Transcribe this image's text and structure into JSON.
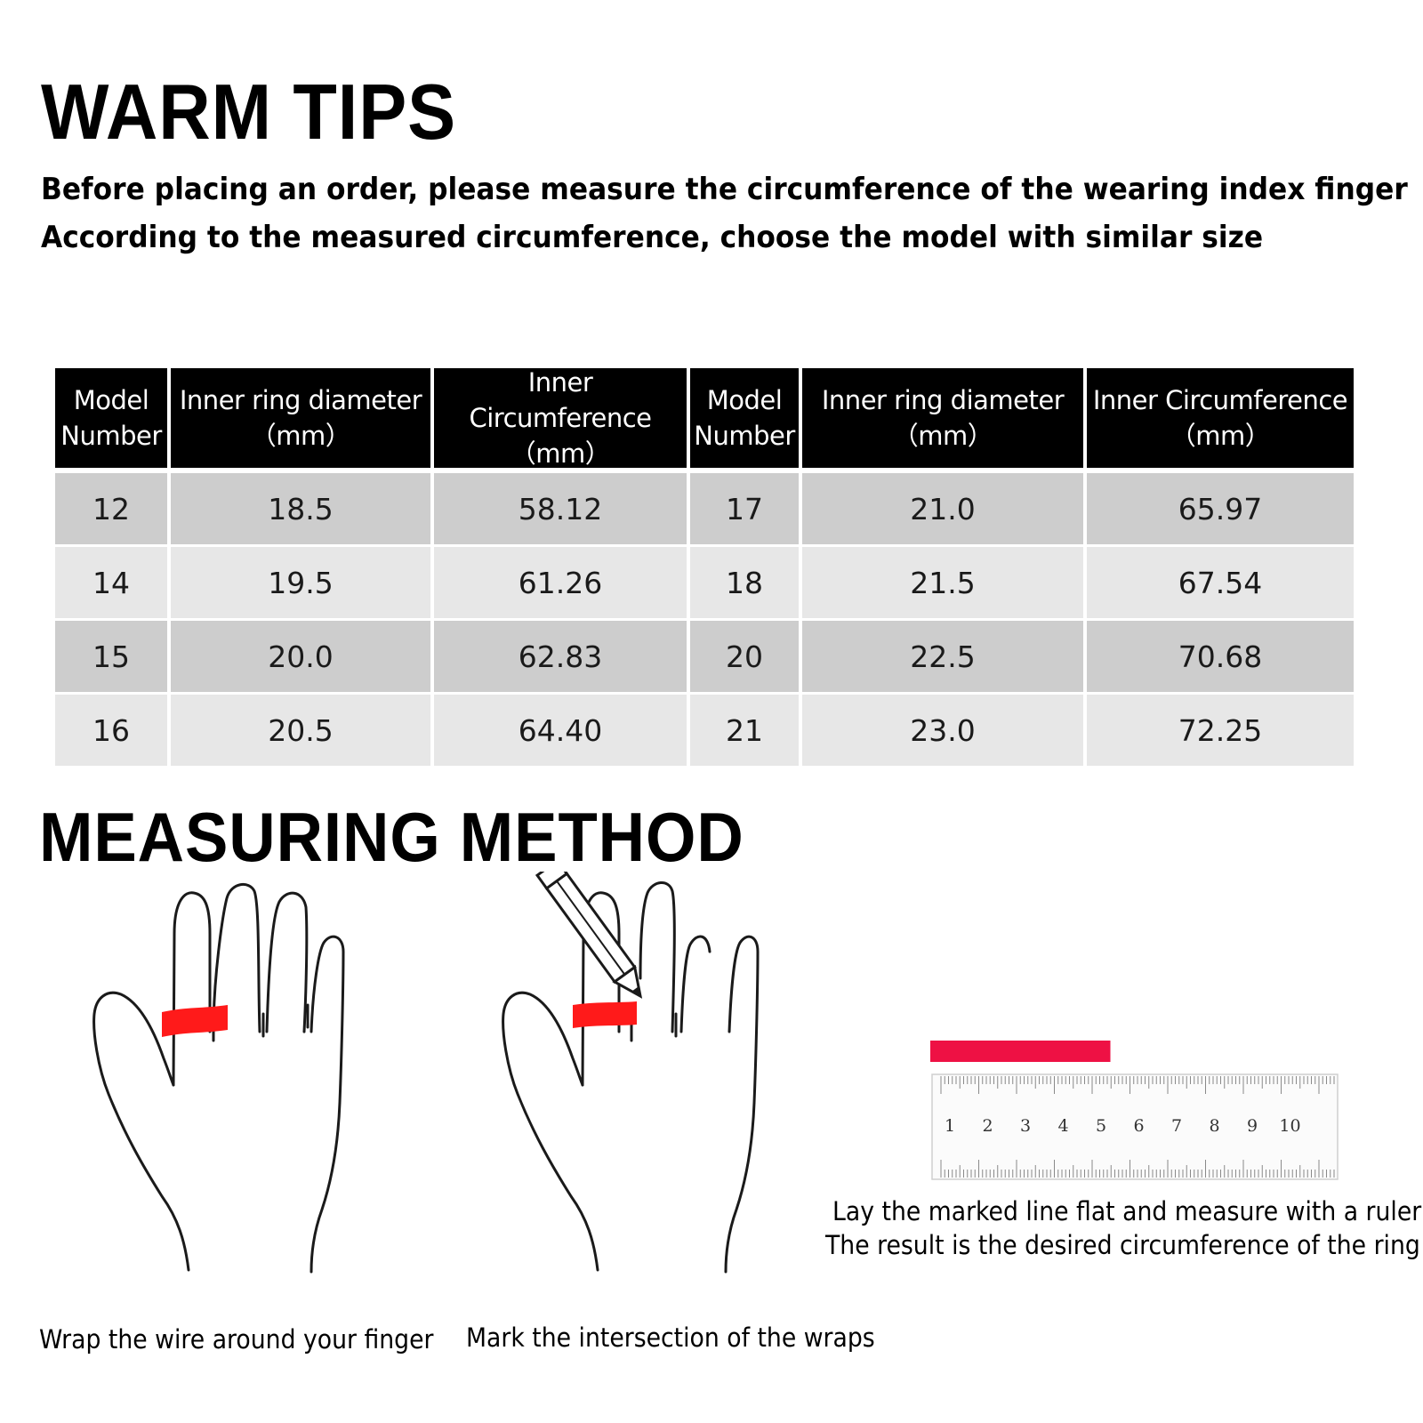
{
  "warm_tips": {
    "title": "WARM TIPS",
    "line1": "Before placing an order, please measure the circumference of the wearing index finger",
    "line2": "According to the measured circumference, choose the model with similar size"
  },
  "table": {
    "headers": [
      {
        "line1": "Model",
        "line2": "Number"
      },
      {
        "line1": "Inner ring diameter",
        "line2": "（mm）"
      },
      {
        "line1": "Inner Circumference",
        "line2": "（mm）"
      },
      {
        "line1": "Model",
        "line2": "Number"
      },
      {
        "line1": "Inner ring diameter",
        "line2": "（mm）"
      },
      {
        "line1": "Inner Circumference",
        "line2": "（mm）"
      }
    ],
    "rows": [
      [
        "12",
        "18.5",
        "58.12",
        "17",
        "21.0",
        "65.97"
      ],
      [
        "14",
        "19.5",
        "61.26",
        "18",
        "21.5",
        "67.54"
      ],
      [
        "15",
        "20.0",
        "62.83",
        "20",
        "22.5",
        "70.68"
      ],
      [
        "16",
        "20.5",
        "64.40",
        "21",
        "23.0",
        "72.25"
      ]
    ]
  },
  "measuring": {
    "title": "MEASURING METHOD",
    "step1": "Wrap the wire around your finger",
    "step2": "Mark the intersection of the wraps",
    "step3_line1": "Lay the marked line flat and measure with a ruler",
    "step3_line2": "The result is the desired circumference of the ring"
  },
  "ruler": {
    "numbers": [
      "1",
      "2",
      "3",
      "4",
      "5",
      "6",
      "7",
      "8",
      "9",
      "10"
    ],
    "marked_length_cm": 5.2
  },
  "colors": {
    "ring_red": "#ff1a1a",
    "strip_red": "#ee1144",
    "header_bg": "#000000",
    "row_dark": "#cdcdcd",
    "row_light": "#e7e7e7"
  }
}
